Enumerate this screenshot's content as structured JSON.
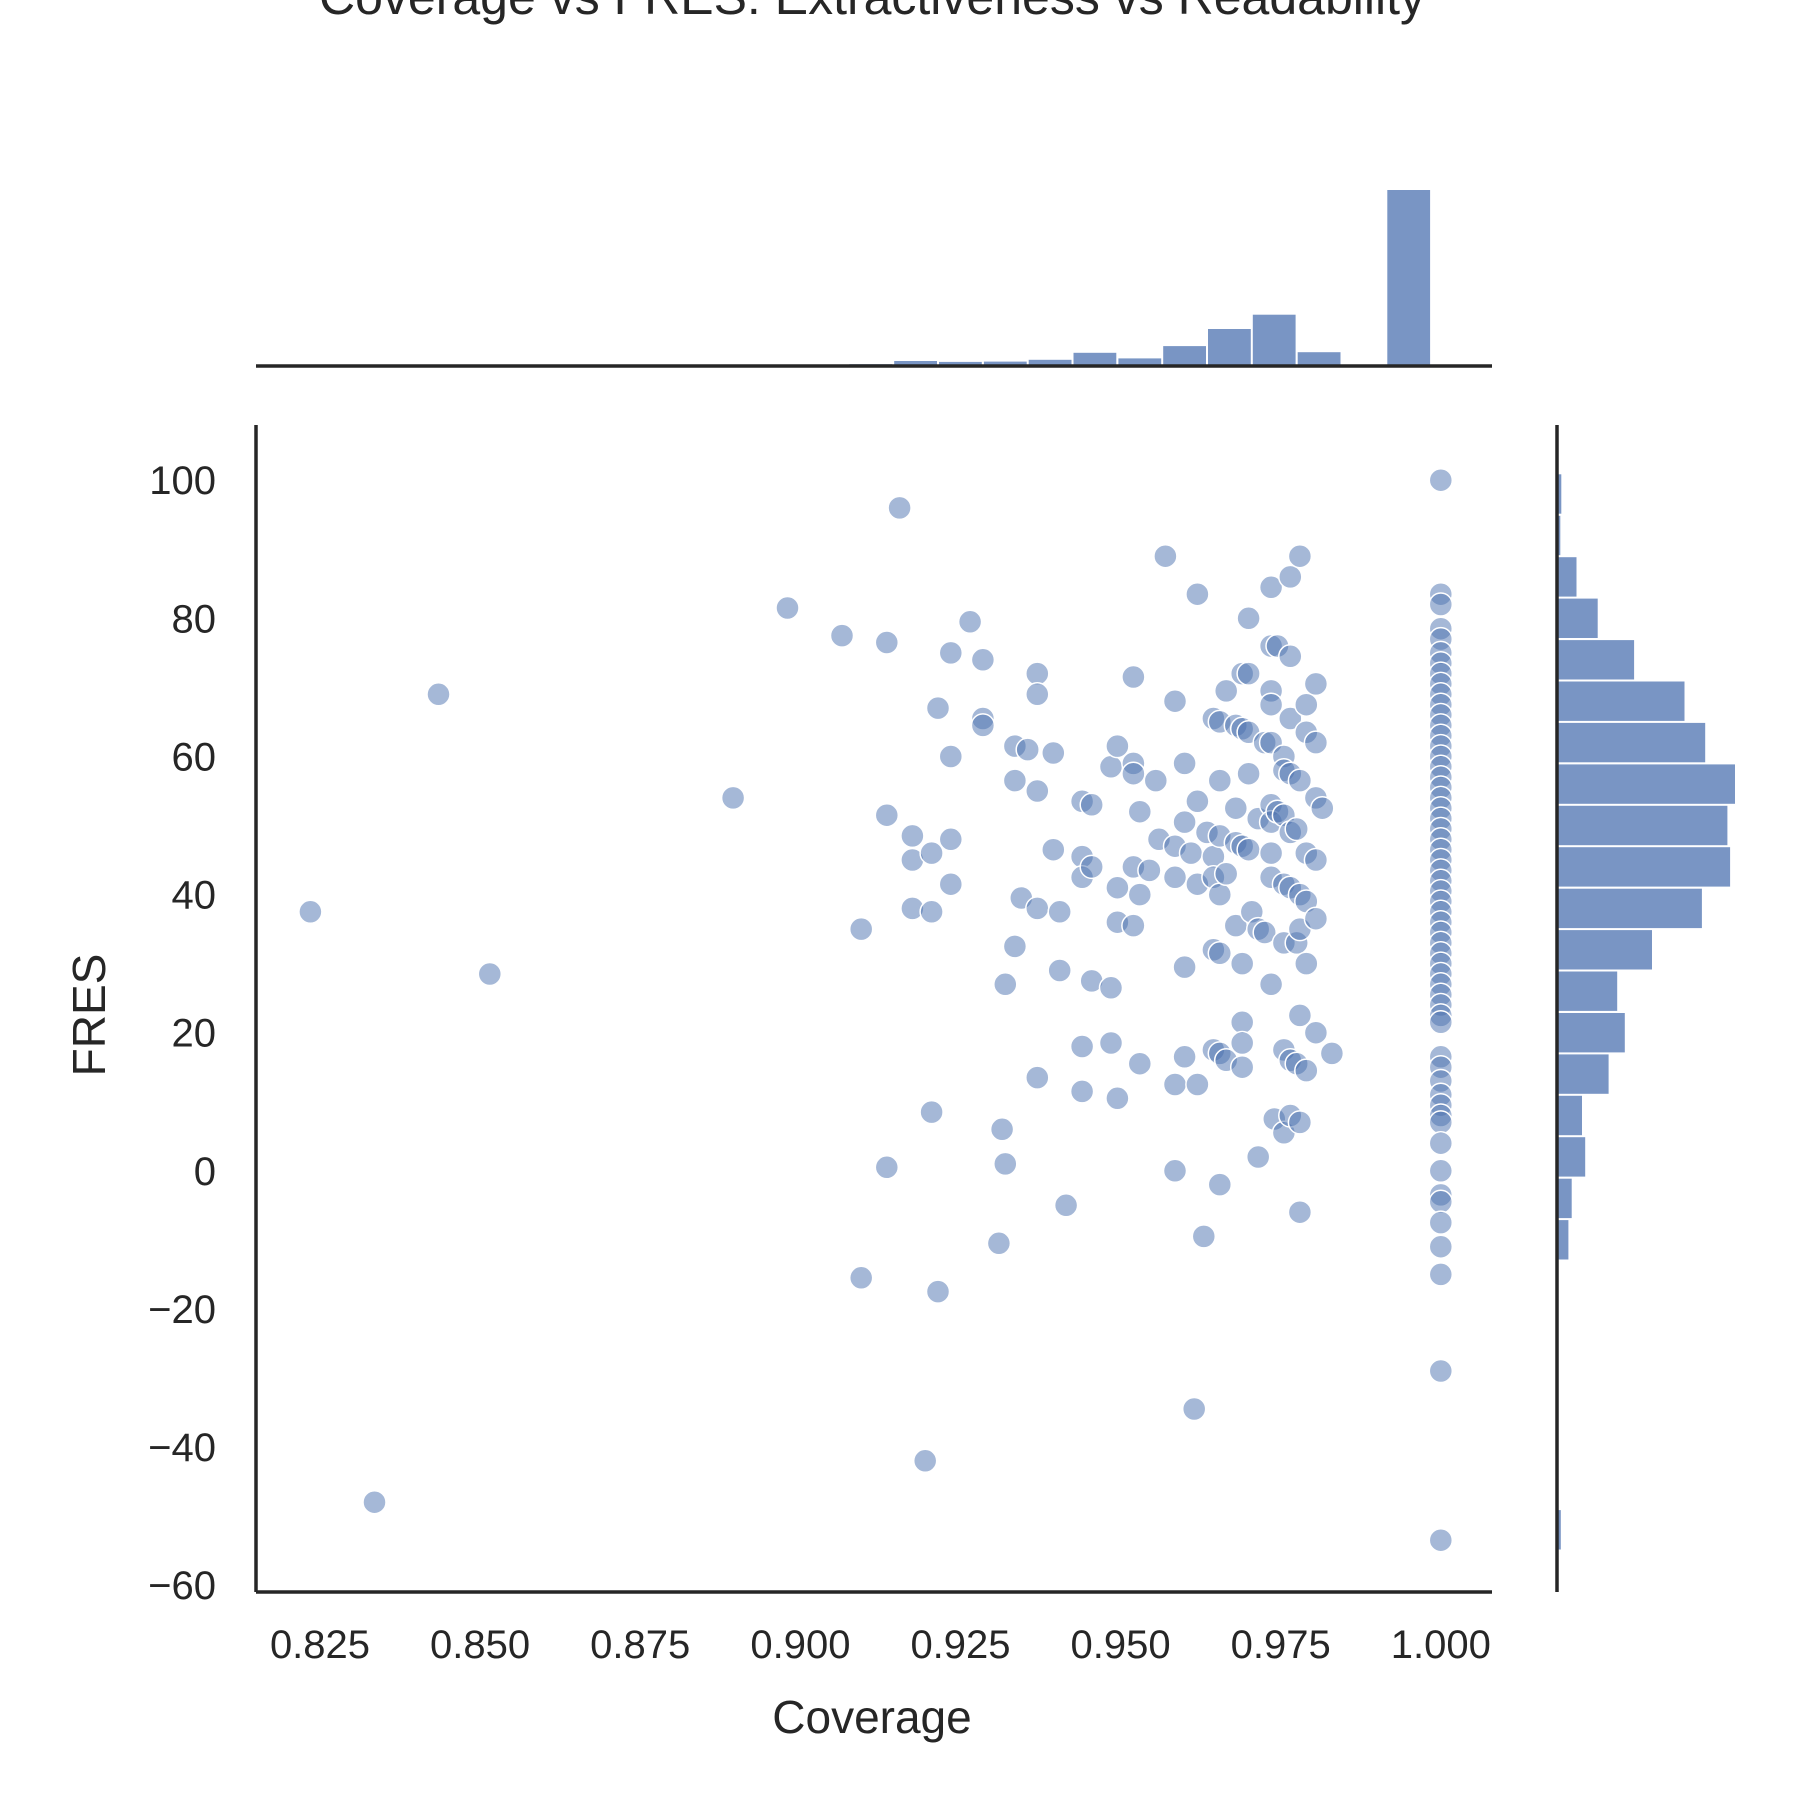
{
  "chart_data": {
    "type": "scatter",
    "title": "Coverage vs FRES: Extractiveness vs Readability",
    "xlabel": "Coverage",
    "ylabel": "FRES",
    "xlim": [
      0.815,
      1.008
    ],
    "ylim": [
      -61,
      108
    ],
    "x_ticks": [
      "0.825",
      "0.850",
      "0.875",
      "0.900",
      "0.925",
      "0.950",
      "0.975",
      "1.000"
    ],
    "x_tick_values": [
      0.825,
      0.85,
      0.875,
      0.9,
      0.925,
      0.95,
      0.975,
      1.0
    ],
    "y_ticks": [
      "−60",
      "−40",
      "−20",
      "0",
      "20",
      "40",
      "60",
      "80",
      "100"
    ],
    "y_tick_values": [
      -60,
      -40,
      -20,
      0,
      20,
      40,
      60,
      80,
      100
    ],
    "color": "#4c72b0",
    "grid": false,
    "marginal_x_hist": {
      "bins": [
        0.9075,
        0.9145,
        0.9215,
        0.9285,
        0.9355,
        0.9425,
        0.9495,
        0.9565,
        0.9635,
        0.9705,
        0.9775,
        0.9845,
        0.9915,
        0.9985
      ],
      "counts": [
        0.6,
        1.7,
        1.4,
        1.5,
        2.1,
        4.5,
        2.6,
        6.8,
        12.6,
        17.5,
        4.7,
        0,
        60
      ]
    },
    "marginal_y_hist": {
      "bins": [
        -55,
        -49,
        -43,
        -37,
        -31,
        -25,
        -19,
        -13,
        -7,
        -1,
        5,
        11,
        17,
        23,
        29,
        35,
        41,
        47,
        53,
        59,
        65,
        71,
        77,
        83,
        89,
        95,
        101
      ],
      "counts": [
        0.7,
        0,
        0,
        0,
        0,
        0,
        0,
        2.1,
        2.7,
        5.2,
        4.6,
        9.5,
        12.5,
        11.1,
        17.5,
        26.7,
        31.9,
        31.4,
        32.8,
        27.3,
        23.5,
        14.2,
        7.5,
        3.6,
        0.6,
        0.8
      ]
    },
    "points": [
      [
        0.8235,
        37.5
      ],
      [
        0.8335,
        -48
      ],
      [
        0.8435,
        69
      ],
      [
        0.8515,
        28.5
      ],
      [
        0.8895,
        54
      ],
      [
        0.898,
        81.5
      ],
      [
        0.9065,
        77.5
      ],
      [
        0.9095,
        35
      ],
      [
        0.9095,
        -15.5
      ],
      [
        0.9135,
        76.5
      ],
      [
        0.9135,
        51.5
      ],
      [
        0.9135,
        0.5
      ],
      [
        0.9155,
        96
      ],
      [
        0.9175,
        48.5
      ],
      [
        0.9175,
        45
      ],
      [
        0.9175,
        38
      ],
      [
        0.9205,
        37.5
      ],
      [
        0.9205,
        46
      ],
      [
        0.9205,
        8.5
      ],
      [
        0.9195,
        -42
      ],
      [
        0.9215,
        67
      ],
      [
        0.9215,
        -17.5
      ],
      [
        0.9235,
        75
      ],
      [
        0.9235,
        60
      ],
      [
        0.9235,
        48
      ],
      [
        0.9235,
        41.5
      ],
      [
        0.9265,
        79.5
      ],
      [
        0.9285,
        74
      ],
      [
        0.9285,
        65.5
      ],
      [
        0.9285,
        64.5
      ],
      [
        0.9315,
        6
      ],
      [
        0.932,
        1
      ],
      [
        0.931,
        -10.5
      ],
      [
        0.932,
        27
      ],
      [
        0.9335,
        61.5
      ],
      [
        0.9335,
        56.5
      ],
      [
        0.9335,
        32.5
      ],
      [
        0.9345,
        39.5
      ],
      [
        0.9355,
        61
      ],
      [
        0.937,
        72
      ],
      [
        0.937,
        69
      ],
      [
        0.937,
        55
      ],
      [
        0.937,
        38
      ],
      [
        0.937,
        13.5
      ],
      [
        0.9395,
        60.5
      ],
      [
        0.9395,
        46.5
      ],
      [
        0.9405,
        37.5
      ],
      [
        0.9405,
        29
      ],
      [
        0.9415,
        -5
      ],
      [
        0.944,
        53.5
      ],
      [
        0.944,
        45.5
      ],
      [
        0.944,
        42.5
      ],
      [
        0.944,
        18
      ],
      [
        0.944,
        11.5
      ],
      [
        0.9455,
        53
      ],
      [
        0.9455,
        44
      ],
      [
        0.9455,
        27.5
      ],
      [
        0.9485,
        26.5
      ],
      [
        0.9485,
        18.5
      ],
      [
        0.9485,
        58.5
      ],
      [
        0.9495,
        61.5
      ],
      [
        0.9495,
        41
      ],
      [
        0.9495,
        36
      ],
      [
        0.9495,
        10.5
      ],
      [
        0.952,
        71.5
      ],
      [
        0.952,
        59
      ],
      [
        0.952,
        57.5
      ],
      [
        0.952,
        44
      ],
      [
        0.952,
        35.5
      ],
      [
        0.953,
        40
      ],
      [
        0.953,
        52
      ],
      [
        0.953,
        15.5
      ],
      [
        0.9545,
        43.5
      ],
      [
        0.9555,
        56.5
      ],
      [
        0.956,
        48
      ],
      [
        0.957,
        89
      ],
      [
        0.9585,
        68
      ],
      [
        0.9585,
        47
      ],
      [
        0.9585,
        42.5
      ],
      [
        0.9585,
        12.5
      ],
      [
        0.9585,
        0
      ],
      [
        0.96,
        59
      ],
      [
        0.96,
        50.5
      ],
      [
        0.96,
        29.5
      ],
      [
        0.96,
        16.5
      ],
      [
        0.961,
        46
      ],
      [
        0.962,
        83.5
      ],
      [
        0.962,
        53.5
      ],
      [
        0.962,
        41.5
      ],
      [
        0.962,
        12.5
      ],
      [
        0.9615,
        -34.5
      ],
      [
        0.9635,
        49
      ],
      [
        0.963,
        -9.5
      ],
      [
        0.9645,
        65.5
      ],
      [
        0.9645,
        45.5
      ],
      [
        0.9645,
        42.5
      ],
      [
        0.9645,
        32
      ],
      [
        0.9645,
        17.5
      ],
      [
        0.9655,
        65
      ],
      [
        0.9655,
        56.5
      ],
      [
        0.9655,
        48.5
      ],
      [
        0.9655,
        40
      ],
      [
        0.9655,
        31.5
      ],
      [
        0.9655,
        17
      ],
      [
        0.9655,
        -2
      ],
      [
        0.9665,
        69.5
      ],
      [
        0.9665,
        43
      ],
      [
        0.9665,
        16
      ],
      [
        0.968,
        64.5
      ],
      [
        0.968,
        52.5
      ],
      [
        0.968,
        47.5
      ],
      [
        0.968,
        35.5
      ],
      [
        0.969,
        72
      ],
      [
        0.969,
        64
      ],
      [
        0.969,
        47
      ],
      [
        0.969,
        30
      ],
      [
        0.969,
        21.5
      ],
      [
        0.969,
        18.5
      ],
      [
        0.969,
        15
      ],
      [
        0.97,
        80
      ],
      [
        0.97,
        72
      ],
      [
        0.97,
        63.5
      ],
      [
        0.97,
        57.5
      ],
      [
        0.97,
        46.5
      ],
      [
        0.9705,
        37.5
      ],
      [
        0.9715,
        51
      ],
      [
        0.9715,
        35
      ],
      [
        0.9715,
        2
      ],
      [
        0.9725,
        62
      ],
      [
        0.9725,
        34.5
      ],
      [
        0.9735,
        84.5
      ],
      [
        0.9735,
        76
      ],
      [
        0.9735,
        69.5
      ],
      [
        0.9735,
        67.5
      ],
      [
        0.9735,
        62
      ],
      [
        0.9735,
        53
      ],
      [
        0.9735,
        50.5
      ],
      [
        0.9735,
        46
      ],
      [
        0.9735,
        42.5
      ],
      [
        0.9735,
        27
      ],
      [
        0.974,
        7.5
      ],
      [
        0.9745,
        76
      ],
      [
        0.9745,
        52
      ],
      [
        0.9755,
        60
      ],
      [
        0.9755,
        58
      ],
      [
        0.9755,
        51.5
      ],
      [
        0.9755,
        41.5
      ],
      [
        0.9755,
        33
      ],
      [
        0.9755,
        17.5
      ],
      [
        0.9755,
        5.5
      ],
      [
        0.9765,
        86
      ],
      [
        0.9765,
        74.5
      ],
      [
        0.9765,
        65.5
      ],
      [
        0.9765,
        57.5
      ],
      [
        0.9765,
        49
      ],
      [
        0.9765,
        41
      ],
      [
        0.9765,
        16
      ],
      [
        0.9765,
        8
      ],
      [
        0.9775,
        49.5
      ],
      [
        0.9775,
        33
      ],
      [
        0.9775,
        15.5
      ],
      [
        0.978,
        89
      ],
      [
        0.978,
        56.5
      ],
      [
        0.978,
        40
      ],
      [
        0.978,
        35
      ],
      [
        0.978,
        22.5
      ],
      [
        0.978,
        7
      ],
      [
        0.978,
        -6
      ],
      [
        0.979,
        67.5
      ],
      [
        0.979,
        63.5
      ],
      [
        0.979,
        46
      ],
      [
        0.979,
        39
      ],
      [
        0.979,
        30
      ],
      [
        0.979,
        14.5
      ],
      [
        0.9805,
        70.5
      ],
      [
        0.9805,
        62
      ],
      [
        0.9805,
        54
      ],
      [
        0.9805,
        45
      ],
      [
        0.9805,
        36.5
      ],
      [
        0.9805,
        20
      ],
      [
        0.9815,
        52.5
      ],
      [
        0.983,
        17
      ],
      [
        1.0,
        100
      ],
      [
        1.0,
        83.5
      ],
      [
        1.0,
        82
      ],
      [
        1.0,
        78.5
      ],
      [
        1.0,
        77
      ],
      [
        1.0,
        75
      ],
      [
        1.0,
        73.5
      ],
      [
        1.0,
        72
      ],
      [
        1.0,
        70.5
      ],
      [
        1.0,
        69
      ],
      [
        1.0,
        67.5
      ],
      [
        1.0,
        66
      ],
      [
        1.0,
        64.5
      ],
      [
        1.0,
        63
      ],
      [
        1.0,
        61.5
      ],
      [
        1.0,
        60
      ],
      [
        1.0,
        58.5
      ],
      [
        1.0,
        57
      ],
      [
        1.0,
        55.5
      ],
      [
        1.0,
        54
      ],
      [
        1.0,
        52.5
      ],
      [
        1.0,
        51
      ],
      [
        1.0,
        49.5
      ],
      [
        1.0,
        48
      ],
      [
        1.0,
        46.5
      ],
      [
        1.0,
        45
      ],
      [
        1.0,
        43.5
      ],
      [
        1.0,
        42
      ],
      [
        1.0,
        40.5
      ],
      [
        1.0,
        39
      ],
      [
        1.0,
        37.5
      ],
      [
        1.0,
        36
      ],
      [
        1.0,
        34.5
      ],
      [
        1.0,
        33
      ],
      [
        1.0,
        31.5
      ],
      [
        1.0,
        30
      ],
      [
        1.0,
        28.5
      ],
      [
        1.0,
        27
      ],
      [
        1.0,
        25.5
      ],
      [
        1.0,
        24
      ],
      [
        1.0,
        22.5
      ],
      [
        1.0,
        21.5
      ],
      [
        1.0,
        16.5
      ],
      [
        1.0,
        15
      ],
      [
        1.0,
        13
      ],
      [
        1.0,
        11
      ],
      [
        1.0,
        9.5
      ],
      [
        1.0,
        8
      ],
      [
        1.0,
        7
      ],
      [
        1.0,
        4
      ],
      [
        1.0,
        0
      ],
      [
        1.0,
        -3.5
      ],
      [
        1.0,
        -4.5
      ],
      [
        1.0,
        -7.5
      ],
      [
        1.0,
        -11
      ],
      [
        1.0,
        -15
      ],
      [
        1.0,
        -29
      ],
      [
        1.0,
        -53.5
      ]
    ]
  }
}
